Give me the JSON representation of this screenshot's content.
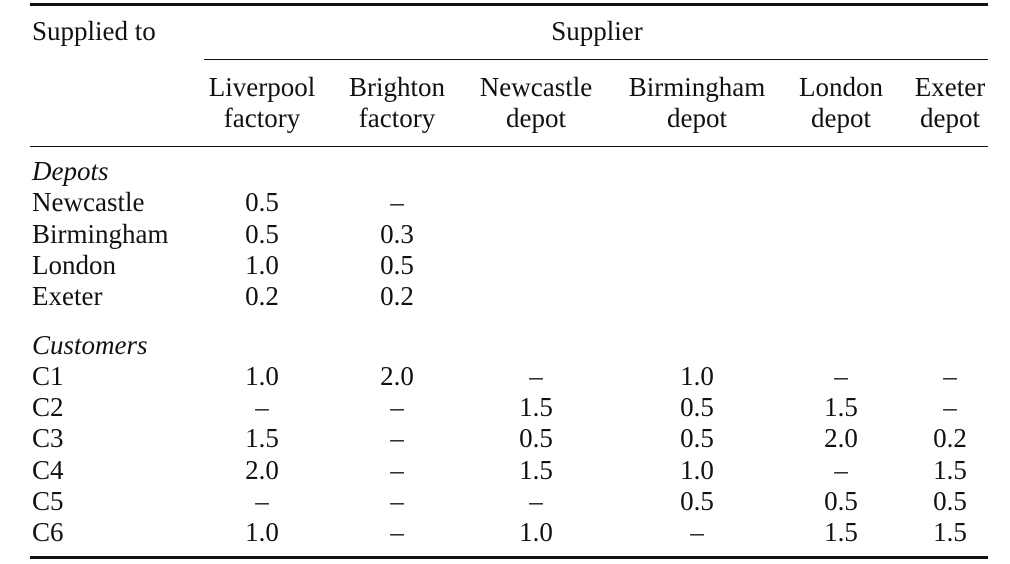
{
  "table": {
    "stub_header": "Supplied to",
    "spanner": "Supplier",
    "columns": [
      {
        "line1": "Liverpool",
        "line2": "factory"
      },
      {
        "line1": "Brighton",
        "line2": "factory"
      },
      {
        "line1": "Newcastle",
        "line2": "depot"
      },
      {
        "line1": "Birmingham",
        "line2": "depot"
      },
      {
        "line1": "London",
        "line2": "depot"
      },
      {
        "line1": "Exeter",
        "line2": "depot"
      }
    ],
    "sections": [
      {
        "title": "Depots",
        "rows": [
          {
            "label": "Newcastle",
            "cells": [
              "0.5",
              "–",
              "",
              "",
              "",
              ""
            ]
          },
          {
            "label": "Birmingham",
            "cells": [
              "0.5",
              "0.3",
              "",
              "",
              "",
              ""
            ]
          },
          {
            "label": "London",
            "cells": [
              "1.0",
              "0.5",
              "",
              "",
              "",
              ""
            ]
          },
          {
            "label": "Exeter",
            "cells": [
              "0.2",
              "0.2",
              "",
              "",
              "",
              ""
            ]
          }
        ]
      },
      {
        "title": "Customers",
        "rows": [
          {
            "label": "C1",
            "cells": [
              "1.0",
              "2.0",
              "–",
              "1.0",
              "–",
              "–"
            ]
          },
          {
            "label": "C2",
            "cells": [
              "–",
              "–",
              "1.5",
              "0.5",
              "1.5",
              "–"
            ]
          },
          {
            "label": "C3",
            "cells": [
              "1.5",
              "–",
              "0.5",
              "0.5",
              "2.0",
              "0.2"
            ]
          },
          {
            "label": "C4",
            "cells": [
              "2.0",
              "–",
              "1.5",
              "1.0",
              "–",
              "1.5"
            ]
          },
          {
            "label": "C5",
            "cells": [
              "–",
              "–",
              "–",
              "0.5",
              "0.5",
              "0.5"
            ]
          },
          {
            "label": "C6",
            "cells": [
              "1.0",
              "–",
              "1.0",
              "–",
              "1.5",
              "1.5"
            ]
          }
        ]
      }
    ]
  }
}
